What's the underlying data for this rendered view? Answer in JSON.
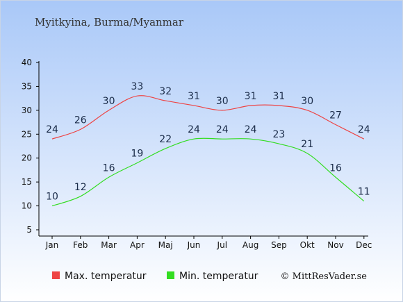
{
  "chart_data": {
    "type": "line",
    "title": "Myitkyina, Burma/Myanmar",
    "categories": [
      "Jan",
      "Feb",
      "Mar",
      "Apr",
      "Maj",
      "Jun",
      "Jul",
      "Aug",
      "Sep",
      "Okt",
      "Nov",
      "Dec"
    ],
    "series": [
      {
        "name": "Max. temperatur",
        "color": "#ee4444",
        "values": [
          24,
          26,
          30,
          33,
          32,
          31,
          30,
          31,
          31,
          30,
          27,
          24
        ]
      },
      {
        "name": "Min. temperatur",
        "color": "#33dd22",
        "values": [
          10,
          12,
          16,
          19,
          22,
          24,
          24,
          24,
          23,
          21,
          16,
          11
        ]
      }
    ],
    "ylim": [
      5,
      40
    ],
    "yticks": [
      5,
      10,
      15,
      20,
      25,
      30,
      35,
      40
    ],
    "grid": false,
    "legend_position": "bottom"
  },
  "credit": "© MittResVader.se",
  "colors": {
    "background_top": "#a9c8f8",
    "background_bottom": "#ffffff",
    "axis": "#000000"
  }
}
